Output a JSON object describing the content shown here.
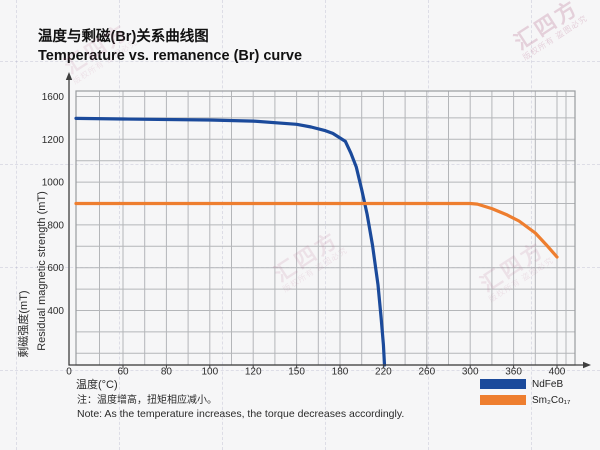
{
  "header": {
    "title_zh": "温度与剩磁(Br)关系曲线图",
    "title_en": "Temperature vs. remanence (Br) curve"
  },
  "note": {
    "zh": "注：温度增高，扭矩相应减小。",
    "en": "Note: As the temperature increases, the torque decreases accordingly."
  },
  "watermark": {
    "brand": "汇四方",
    "claim": "版权所有 盗图必究"
  },
  "chart_data": {
    "type": "line",
    "title": "Temperature vs. remanence (Br) curve",
    "xlabel": "温度(°C)",
    "ylabel_zh": "剩磁强度(mT)",
    "ylabel_en": "Residual magnetic strength (mT)",
    "x_tick_labels": [
      "0",
      "60",
      "80",
      "100",
      "120",
      "150",
      "180",
      "220",
      "260",
      "300",
      "360",
      "400"
    ],
    "y_tick_labels": [
      "1600",
      "1200",
      "1000",
      "800",
      "600",
      "400"
    ],
    "origin_label": "0",
    "grid": true,
    "legend_position": "bottom-right",
    "xlim": [
      0,
      400
    ],
    "axis_note": "tick labels are evenly spaced on the axes even though values are non-uniform",
    "series": [
      {
        "name": "NdFeB",
        "color": "#1b4a9b",
        "x": [
          0,
          60,
          100,
          120,
          150,
          160,
          170,
          175,
          185,
          190,
          195,
          200,
          205,
          210,
          215,
          218,
          220,
          221
        ],
        "values": [
          1395,
          1390,
          1380,
          1370,
          1340,
          1315,
          1280,
          1255,
          1190,
          1135,
          1070,
          965,
          850,
          705,
          520,
          340,
          150,
          0
        ]
      },
      {
        "name": "Sm₂Co₁₇",
        "color": "#ee7e2f",
        "x": [
          0,
          100,
          200,
          300,
          310,
          330,
          350,
          365,
          380,
          390,
          400
        ],
        "values": [
          900,
          900,
          900,
          900,
          897,
          876,
          848,
          818,
          762,
          708,
          650
        ]
      }
    ]
  }
}
